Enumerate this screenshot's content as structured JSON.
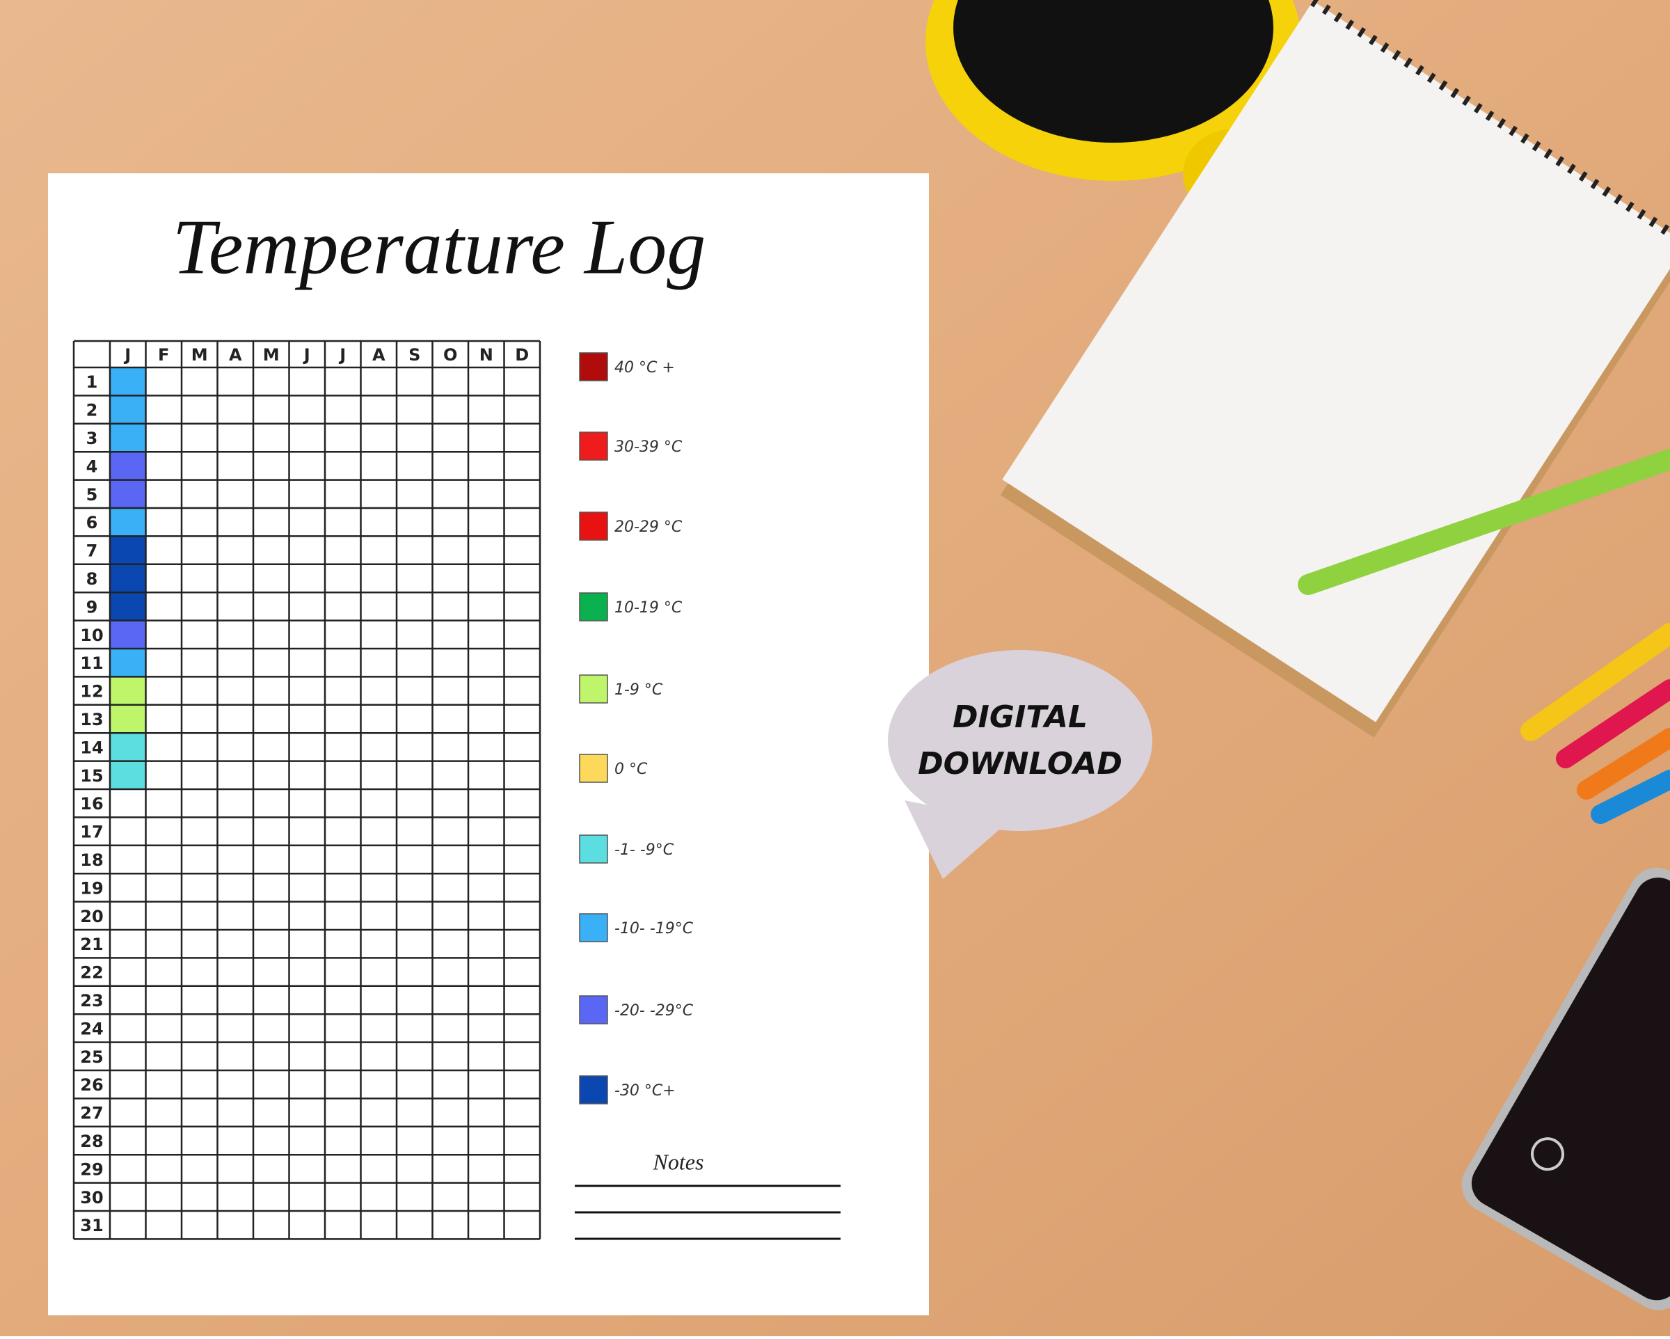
{
  "title": "Temperature Log",
  "months": [
    "J",
    "F",
    "M",
    "A",
    "M",
    "J",
    "J",
    "A",
    "S",
    "O",
    "N",
    "D"
  ],
  "days": [
    1,
    2,
    3,
    4,
    5,
    6,
    7,
    8,
    9,
    10,
    11,
    12,
    13,
    14,
    15,
    16,
    17,
    18,
    19,
    20,
    21,
    22,
    23,
    24,
    25,
    26,
    27,
    28,
    29,
    30,
    31
  ],
  "first_month_cell_colors": [
    "#3ab0f7",
    "#3ab0f7",
    "#3ab0f7",
    "#5a67f5",
    "#5a67f5",
    "#3ab0f7",
    "#0b47b0",
    "#0b47b0",
    "#0b47b0",
    "#5a67f5",
    "#3ab0f7",
    "#bff56a",
    "#bff56a",
    "#5cdde0",
    "#5cdde0"
  ],
  "legend": [
    {
      "label": "40 °C +",
      "color": "#b00c0c"
    },
    {
      "label": "30-39 °C",
      "color": "#ee1c1c"
    },
    {
      "label": "20-29 °C",
      "color": "#e81212"
    },
    {
      "label": "10-19 °C",
      "color": "#0bb14e"
    },
    {
      "label": "1-9 °C",
      "color": "#bff56a"
    },
    {
      "label": "0 °C",
      "color": "#fcd95a"
    },
    {
      "label": "-1- -9°C",
      "color": "#5cdde0"
    },
    {
      "label": "-10- -19°C",
      "color": "#3ab0f7"
    },
    {
      "label": "-20- -29°C",
      "color": "#5a67f5"
    },
    {
      "label": "-30 °C+",
      "color": "#0b47b0"
    }
  ],
  "notes_label": "Notes",
  "badge": {
    "line1": "DIGITAL",
    "line2": "DOWNLOAD"
  }
}
